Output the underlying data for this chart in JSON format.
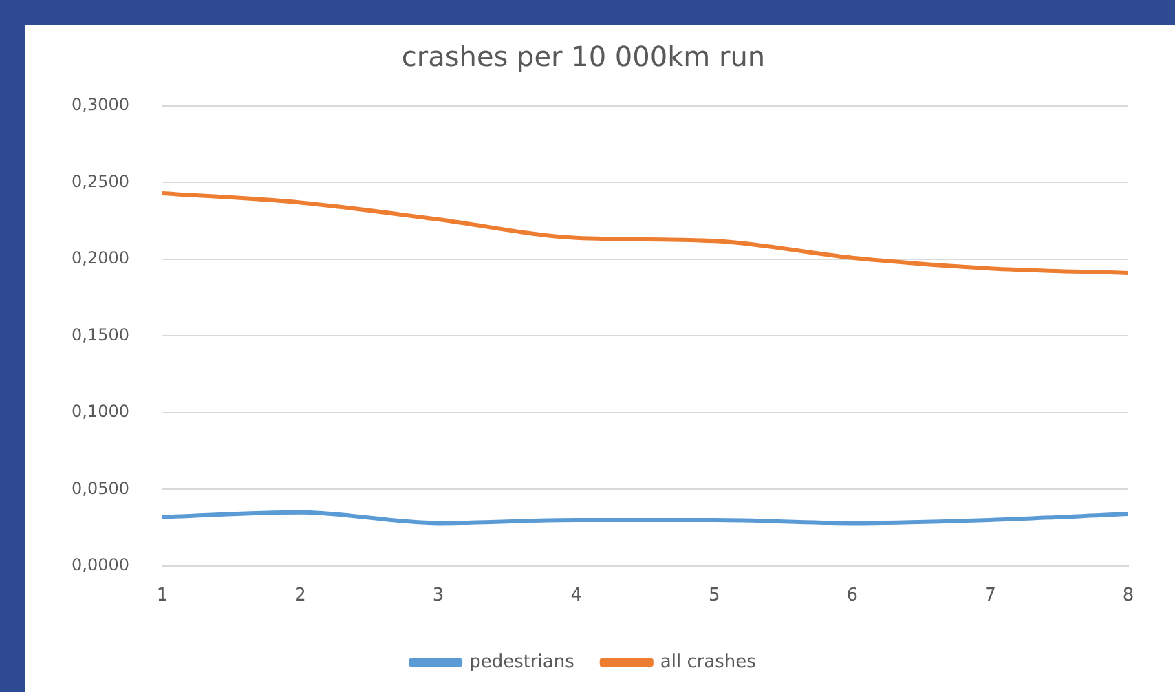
{
  "chart_data": {
    "type": "line",
    "title": "crashes per 10 000km run",
    "categories": [
      "1",
      "2",
      "3",
      "4",
      "5",
      "6",
      "7",
      "8"
    ],
    "series": [
      {
        "name": "pedestrians",
        "color": "#5b9bd5",
        "values": [
          0.032,
          0.035,
          0.028,
          0.03,
          0.03,
          0.028,
          0.03,
          0.034
        ]
      },
      {
        "name": "all crashes",
        "color": "#ed7d31",
        "values": [
          0.243,
          0.237,
          0.226,
          0.214,
          0.212,
          0.201,
          0.194,
          0.191
        ]
      }
    ],
    "ylim": [
      0,
      0.3
    ],
    "yticks": [
      {
        "value": 0,
        "label": "0,0000"
      },
      {
        "value": 0.05,
        "label": "0,0500"
      },
      {
        "value": 0.1,
        "label": "0,1000"
      },
      {
        "value": 0.15,
        "label": "0,1500"
      },
      {
        "value": 0.2,
        "label": "0,2000"
      },
      {
        "value": 0.25,
        "label": "0,2500"
      },
      {
        "value": 0.3,
        "label": "0,3000"
      }
    ],
    "grid": "y",
    "legend": "bottom",
    "marker": "none",
    "line_style": "solid"
  }
}
